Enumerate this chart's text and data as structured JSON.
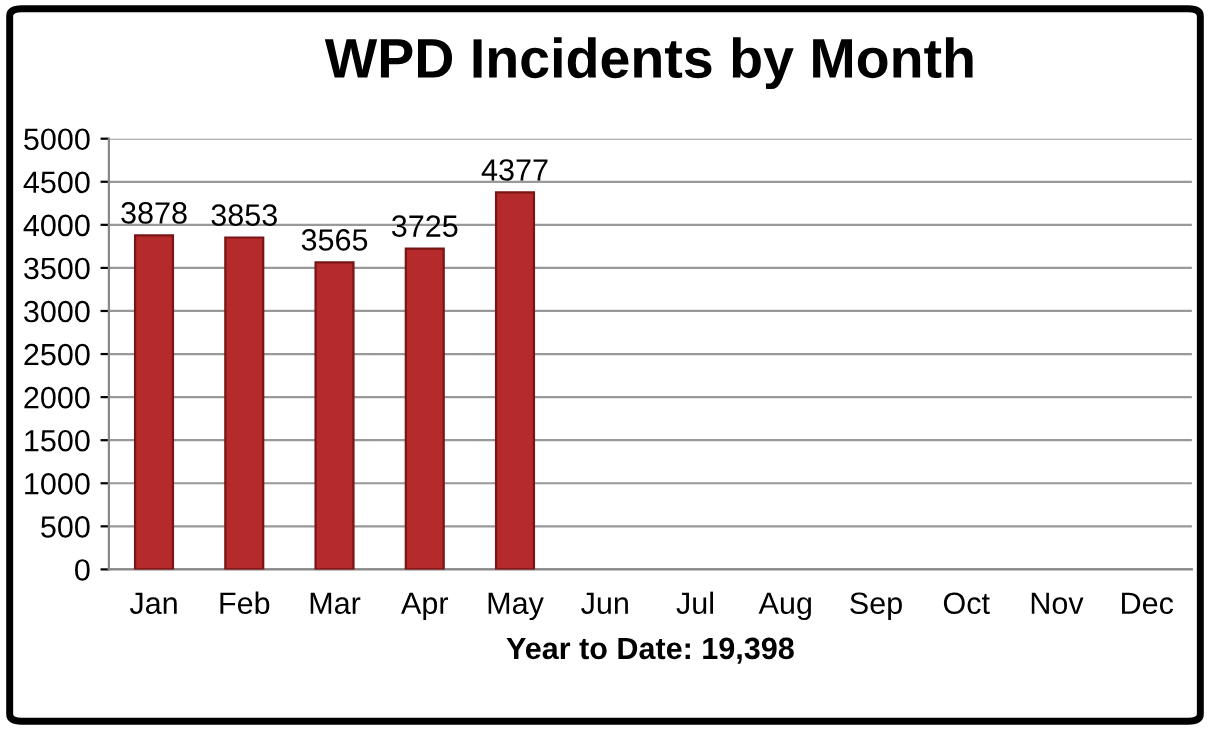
{
  "chart_data": {
    "type": "bar",
    "title": "WPD Incidents by Month",
    "categories": [
      "Jan",
      "Feb",
      "Mar",
      "Apr",
      "May",
      "Jun",
      "Jul",
      "Aug",
      "Sep",
      "Oct",
      "Nov",
      "Dec"
    ],
    "values": [
      3878,
      3853,
      3565,
      3725,
      4377,
      null,
      null,
      null,
      null,
      null,
      null,
      null
    ],
    "color": "#b52a2a",
    "xlabel": "Year to Date: 19,398",
    "ylim": [
      0,
      5000
    ],
    "yticks": [
      0,
      500,
      1000,
      1500,
      2000,
      2500,
      3000,
      3500,
      4000,
      4500,
      5000
    ],
    "grid": "y",
    "data_labels": true
  }
}
